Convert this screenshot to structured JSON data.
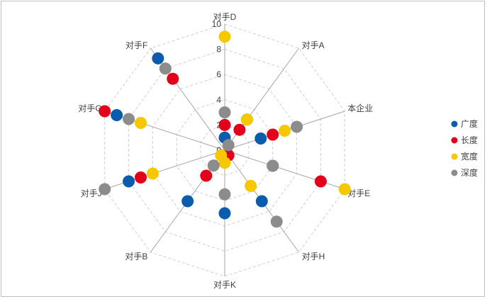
{
  "chart_data": {
    "type": "radar",
    "chart_style": "scatter-markers",
    "categories": [
      "对手D",
      "对手A",
      "本企业",
      "对手E",
      "对手H",
      "对手K",
      "对手B",
      "对手J",
      "对手G",
      "对手F"
    ],
    "series": [
      {
        "name": "广度",
        "color": "#0b5cad",
        "values": [
          1,
          3,
          3,
          4,
          5,
          5,
          5,
          8,
          9,
          9
        ]
      },
      {
        "name": "长度",
        "color": "#e3001b",
        "values": [
          2,
          2,
          4,
          8,
          0.5,
          0.5,
          2.5,
          7,
          10,
          7
        ]
      },
      {
        "name": "宽度",
        "color": "#f5c800",
        "values": [
          9,
          3,
          5,
          10,
          3.5,
          1,
          0.5,
          6,
          7,
          8
        ]
      },
      {
        "name": "深度",
        "color": "#8c8c8c",
        "values": [
          3,
          0.5,
          6,
          4,
          7,
          3.5,
          1.5,
          10,
          8,
          8
        ]
      }
    ],
    "rlim": [
      0,
      10
    ],
    "ticks": [
      "0",
      "2",
      "4",
      "6",
      "8",
      "10"
    ],
    "grid": true,
    "legend": "right"
  }
}
